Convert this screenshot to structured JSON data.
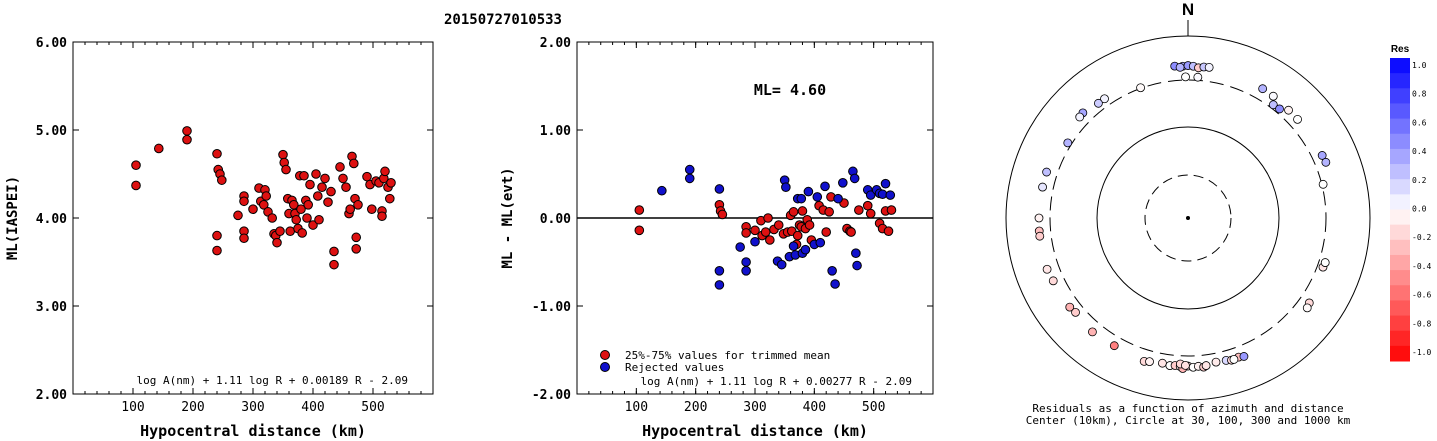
{
  "title": "20150727010533",
  "chart_data": [
    {
      "type": "scatter",
      "panel": "left",
      "xlabel": "Hypocentral distance (km)",
      "ylabel": "ML(IASPEI)",
      "xlim": [
        0,
        600
      ],
      "ylim": [
        2.0,
        6.0
      ],
      "xticks": [
        {
          "v": 100,
          "label": "100"
        },
        {
          "v": 200,
          "label": "200"
        },
        {
          "v": 300,
          "label": "300"
        },
        {
          "v": 400,
          "label": "400"
        },
        {
          "v": 500,
          "label": "500"
        }
      ],
      "yticks": [
        {
          "v": 2.0,
          "label": "2.00"
        },
        {
          "v": 3.0,
          "label": "3.00"
        },
        {
          "v": 4.0,
          "label": "4.00"
        },
        {
          "v": 5.0,
          "label": "5.00"
        },
        {
          "v": 6.0,
          "label": "6.00"
        }
      ],
      "formula": "log A(nm) + 1.11 log R + 0.00189 R - 2.09",
      "point_color": "#dd1111",
      "points": [
        [
          105,
          4.6
        ],
        [
          105,
          4.37
        ],
        [
          143,
          4.79
        ],
        [
          190,
          4.99
        ],
        [
          190,
          4.89
        ],
        [
          240,
          4.73
        ],
        [
          242,
          4.55
        ],
        [
          245,
          4.5
        ],
        [
          248,
          4.43
        ],
        [
          240,
          3.8
        ],
        [
          240,
          3.63
        ],
        [
          275,
          4.03
        ],
        [
          285,
          4.25
        ],
        [
          285,
          4.19
        ],
        [
          285,
          3.85
        ],
        [
          285,
          3.77
        ],
        [
          300,
          4.1
        ],
        [
          310,
          4.34
        ],
        [
          313,
          4.19
        ],
        [
          318,
          4.15
        ],
        [
          320,
          4.32
        ],
        [
          322,
          4.25
        ],
        [
          325,
          4.07
        ],
        [
          332,
          4.0
        ],
        [
          335,
          3.82
        ],
        [
          338,
          3.8
        ],
        [
          340,
          3.72
        ],
        [
          345,
          3.85
        ],
        [
          350,
          4.72
        ],
        [
          352,
          4.63
        ],
        [
          355,
          4.55
        ],
        [
          358,
          4.22
        ],
        [
          360,
          4.05
        ],
        [
          362,
          3.85
        ],
        [
          365,
          4.2
        ],
        [
          368,
          4.15
        ],
        [
          370,
          4.05
        ],
        [
          372,
          3.98
        ],
        [
          375,
          3.88
        ],
        [
          378,
          4.48
        ],
        [
          380,
          4.1
        ],
        [
          382,
          3.83
        ],
        [
          385,
          4.48
        ],
        [
          388,
          4.2
        ],
        [
          390,
          4.0
        ],
        [
          392,
          4.15
        ],
        [
          395,
          4.38
        ],
        [
          400,
          3.92
        ],
        [
          405,
          4.5
        ],
        [
          408,
          4.25
        ],
        [
          410,
          3.98
        ],
        [
          415,
          4.35
        ],
        [
          420,
          4.45
        ],
        [
          425,
          4.18
        ],
        [
          430,
          4.3
        ],
        [
          435,
          3.62
        ],
        [
          435,
          3.47
        ],
        [
          445,
          4.58
        ],
        [
          450,
          4.45
        ],
        [
          455,
          4.35
        ],
        [
          460,
          4.05
        ],
        [
          462,
          4.1
        ],
        [
          465,
          4.7
        ],
        [
          468,
          4.62
        ],
        [
          470,
          4.22
        ],
        [
          472,
          3.78
        ],
        [
          472,
          3.65
        ],
        [
          475,
          4.15
        ],
        [
          490,
          4.47
        ],
        [
          495,
          4.38
        ],
        [
          498,
          4.1
        ],
        [
          505,
          4.42
        ],
        [
          510,
          4.4
        ],
        [
          515,
          4.08
        ],
        [
          515,
          4.02
        ],
        [
          518,
          4.45
        ],
        [
          520,
          4.53
        ],
        [
          525,
          4.35
        ],
        [
          528,
          4.22
        ],
        [
          530,
          4.4
        ]
      ]
    },
    {
      "type": "scatter",
      "panel": "middle",
      "xlabel": "Hypocentral distance (km)",
      "ylabel": "ML - ML(evt)",
      "xlim": [
        0,
        600
      ],
      "ylim": [
        -2.0,
        2.0
      ],
      "xticks": [
        {
          "v": 100,
          "label": "100"
        },
        {
          "v": 200,
          "label": "200"
        },
        {
          "v": 300,
          "label": "300"
        },
        {
          "v": 400,
          "label": "400"
        },
        {
          "v": 500,
          "label": "500"
        }
      ],
      "yticks": [
        {
          "v": -2.0,
          "label": "-2.00"
        },
        {
          "v": -1.0,
          "label": "-1.00"
        },
        {
          "v": 0.0,
          "label": "0.00"
        },
        {
          "v": 1.0,
          "label": "1.00"
        },
        {
          "v": 2.0,
          "label": "2.00"
        }
      ],
      "annotation": "ML= 4.60",
      "formula": "log A(nm) + 1.11 log R + 0.00277 R - 2.09",
      "legend": [
        {
          "label": "25%-75% values for trimmed mean",
          "color": "#dd1111"
        },
        {
          "label": "Rejected values",
          "color": "#1111cc"
        }
      ],
      "series": [
        {
          "name": "25%-75% values for trimmed mean",
          "color": "#dd1111",
          "points": [
            [
              105,
              0.09
            ],
            [
              105,
              -0.14
            ],
            [
              240,
              0.15
            ],
            [
              242,
              0.08
            ],
            [
              245,
              0.04
            ],
            [
              285,
              -0.1
            ],
            [
              285,
              -0.17
            ],
            [
              300,
              -0.14
            ],
            [
              310,
              -0.03
            ],
            [
              312,
              -0.2
            ],
            [
              318,
              -0.16
            ],
            [
              322,
              0.0
            ],
            [
              325,
              -0.25
            ],
            [
              332,
              -0.13
            ],
            [
              340,
              -0.08
            ],
            [
              348,
              -0.18
            ],
            [
              355,
              -0.16
            ],
            [
              360,
              0.03
            ],
            [
              362,
              -0.15
            ],
            [
              365,
              0.07
            ],
            [
              370,
              -0.3
            ],
            [
              372,
              -0.2
            ],
            [
              375,
              -0.08
            ],
            [
              378,
              -0.1
            ],
            [
              380,
              0.08
            ],
            [
              385,
              -0.12
            ],
            [
              388,
              -0.02
            ],
            [
              392,
              -0.08
            ],
            [
              395,
              -0.25
            ],
            [
              408,
              0.14
            ],
            [
              415,
              0.09
            ],
            [
              420,
              -0.16
            ],
            [
              425,
              0.07
            ],
            [
              428,
              0.24
            ],
            [
              450,
              0.17
            ],
            [
              455,
              -0.12
            ],
            [
              460,
              -0.15
            ],
            [
              462,
              -0.16
            ],
            [
              475,
              0.09
            ],
            [
              490,
              0.14
            ],
            [
              495,
              0.05
            ],
            [
              510,
              -0.06
            ],
            [
              515,
              -0.12
            ],
            [
              520,
              0.08
            ],
            [
              525,
              -0.15
            ],
            [
              530,
              0.09
            ]
          ]
        },
        {
          "name": "Rejected values",
          "color": "#1111cc",
          "points": [
            [
              143,
              0.31
            ],
            [
              190,
              0.55
            ],
            [
              190,
              0.45
            ],
            [
              240,
              0.33
            ],
            [
              240,
              -0.6
            ],
            [
              240,
              -0.76
            ],
            [
              275,
              -0.33
            ],
            [
              285,
              -0.5
            ],
            [
              285,
              -0.6
            ],
            [
              300,
              -0.27
            ],
            [
              338,
              -0.49
            ],
            [
              345,
              -0.53
            ],
            [
              350,
              0.43
            ],
            [
              352,
              0.35
            ],
            [
              358,
              -0.44
            ],
            [
              365,
              -0.32
            ],
            [
              368,
              -0.42
            ],
            [
              372,
              0.22
            ],
            [
              378,
              0.22
            ],
            [
              380,
              -0.4
            ],
            [
              385,
              -0.36
            ],
            [
              390,
              0.3
            ],
            [
              400,
              -0.3
            ],
            [
              405,
              0.24
            ],
            [
              410,
              -0.28
            ],
            [
              418,
              0.36
            ],
            [
              430,
              -0.6
            ],
            [
              435,
              -0.75
            ],
            [
              440,
              0.22
            ],
            [
              448,
              0.4
            ],
            [
              465,
              0.53
            ],
            [
              468,
              0.45
            ],
            [
              470,
              -0.4
            ],
            [
              472,
              -0.54
            ],
            [
              490,
              0.32
            ],
            [
              495,
              0.26
            ],
            [
              505,
              0.32
            ],
            [
              510,
              0.28
            ],
            [
              515,
              0.27
            ],
            [
              520,
              0.39
            ],
            [
              528,
              0.26
            ]
          ]
        }
      ]
    },
    {
      "type": "scatter",
      "panel": "right",
      "title": "N",
      "caption1": "Residuals as a function of azimuth and distance",
      "caption2": "Center (10km), Circle at 30, 100, 300 and 1000 km",
      "colorbar": {
        "title": "Res",
        "max": 1.0,
        "min": -1.0,
        "labels": [
          "1.0",
          "0.8",
          "0.6",
          "0.4",
          "0.2",
          "0.0",
          "-0.2",
          "-0.4",
          "-0.6",
          "-0.8",
          "-1.0"
        ]
      },
      "points": [
        {
          "az": 358,
          "dist": 520,
          "res": 0.35
        },
        {
          "az": 0,
          "dist": 530,
          "res": 0.4
        },
        {
          "az": 2,
          "dist": 520,
          "res": 0.25
        },
        {
          "az": 4,
          "dist": 500,
          "res": -0.2
        },
        {
          "az": 6,
          "dist": 520,
          "res": 0.22
        },
        {
          "az": 8,
          "dist": 525,
          "res": 0.05
        },
        {
          "az": 355,
          "dist": 530,
          "res": 0.45
        },
        {
          "az": -3,
          "dist": 505,
          "res": 0.3
        },
        {
          "az": 4,
          "dist": 350,
          "res": 0.02
        },
        {
          "az": -1,
          "dist": 350,
          "res": 0.0
        },
        {
          "az": 30,
          "dist": 480,
          "res": 0.3
        },
        {
          "az": 35,
          "dist": 470,
          "res": 0.02
        },
        {
          "az": 43,
          "dist": 450,
          "res": -0.05
        },
        {
          "az": 48,
          "dist": 450,
          "res": 0.0
        },
        {
          "az": 37,
          "dist": 360,
          "res": 0.25
        },
        {
          "az": 40,
          "dist": 370,
          "res": 0.45
        },
        {
          "az": 65,
          "dist": 460,
          "res": 0.35
        },
        {
          "az": 68,
          "dist": 470,
          "res": 0.3
        },
        {
          "az": 76,
          "dist": 320,
          "res": 0.0
        },
        {
          "az": -20,
          "dist": 310,
          "res": -0.02
        },
        {
          "az": -35,
          "dist": 420,
          "res": 0.05
        },
        {
          "az": -38,
          "dist": 420,
          "res": 0.2
        },
        {
          "az": -45,
          "dist": 470,
          "res": 0.35
        },
        {
          "az": -47,
          "dist": 460,
          "res": 0.05
        },
        {
          "az": -58,
          "dist": 360,
          "res": 0.3
        },
        {
          "az": -72,
          "dist": 470,
          "res": 0.25
        },
        {
          "az": -78,
          "dist": 470,
          "res": 0.1
        },
        {
          "az": -90,
          "dist": 475,
          "res": -0.05
        },
        {
          "az": -95,
          "dist": 480,
          "res": -0.25
        },
        {
          "az": -97,
          "dist": 480,
          "res": -0.2
        },
        {
          "az": -110,
          "dist": 490,
          "res": -0.1
        },
        {
          "az": -115,
          "dist": 470,
          "res": -0.15
        },
        {
          "az": -127,
          "dist": 460,
          "res": -0.3
        },
        {
          "az": -130,
          "dist": 440,
          "res": -0.2
        },
        {
          "az": -140,
          "dist": 470,
          "res": -0.3
        },
        {
          "az": -150,
          "dist": 450,
          "res": -0.5
        },
        {
          "az": -163,
          "dist": 490,
          "res": -0.15
        },
        {
          "az": -165,
          "dist": 470,
          "res": -0.05
        },
        {
          "az": -170,
          "dist": 450,
          "res": -0.1
        },
        {
          "az": -173,
          "dist": 470,
          "res": 0.0
        },
        {
          "az": -175,
          "dist": 460,
          "res": -0.2
        },
        {
          "az": -177,
          "dist": 470,
          "res": -0.05
        },
        {
          "az": 180,
          "dist": 460,
          "res": -0.12
        },
        {
          "az": 178,
          "dist": 480,
          "res": 0.0
        },
        {
          "az": 176,
          "dist": 470,
          "res": -0.05
        },
        {
          "az": 174,
          "dist": 490,
          "res": -0.2
        },
        {
          "az": 173,
          "dist": 470,
          "res": -0.1
        },
        {
          "az": -178,
          "dist": 500,
          "res": -0.3
        },
        {
          "az": 169,
          "dist": 440,
          "res": -0.08
        },
        {
          "az": 165,
          "dist": 450,
          "res": 0.15
        },
        {
          "az": 163,
          "dist": 470,
          "res": -0.15
        },
        {
          "az": 160,
          "dist": 460,
          "res": -0.25
        },
        {
          "az": 158,
          "dist": 480,
          "res": 0.4
        },
        {
          "az": 162,
          "dist": 470,
          "res": 0.0
        },
        {
          "az": 125,
          "dist": 460,
          "res": -0.15
        },
        {
          "az": 127,
          "dist": 480,
          "res": -0.02
        },
        {
          "az": 110,
          "dist": 390,
          "res": -0.1
        },
        {
          "az": 108,
          "dist": 400,
          "res": 0.0
        },
        {
          "az": 183,
          "dist": 430,
          "res": -0.15
        },
        {
          "az": 181,
          "dist": 450,
          "res": -0.12
        }
      ]
    }
  ]
}
